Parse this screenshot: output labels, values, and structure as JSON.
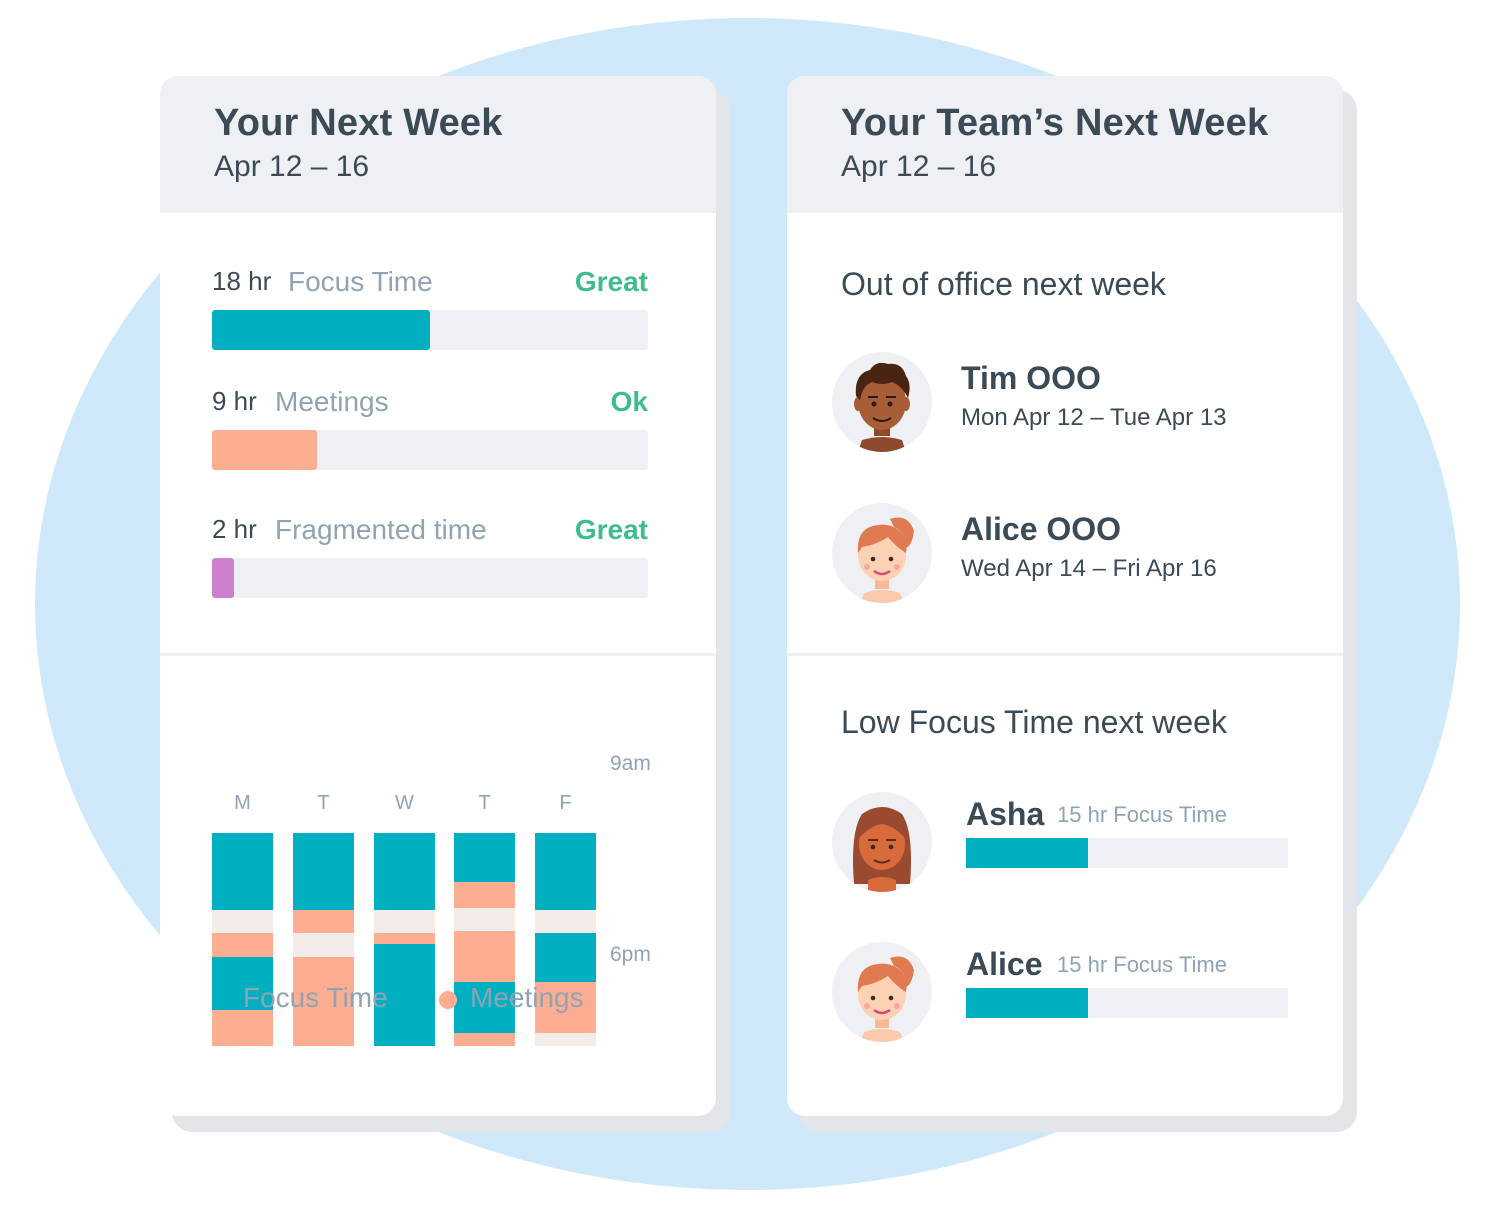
{
  "colors": {
    "focus": "#00b0c1",
    "meetings": "#fdad91",
    "fragmented": "#cf7fcf",
    "gap": "#f4ece8",
    "rating_green": "#3dbd8c"
  },
  "left_card": {
    "title": "Your Next Week",
    "date_range": "Apr 12 – 16",
    "metrics": [
      {
        "hours": "18 hr",
        "label": "Focus Time",
        "rating": "Great",
        "fill_fraction": 0.5
      },
      {
        "hours": "9 hr",
        "label": "Meetings",
        "rating": "Ok",
        "fill_fraction": 0.24
      },
      {
        "hours": "2 hr",
        "label": "Fragmented time",
        "rating": "Great",
        "fill_fraction": 0.05
      }
    ],
    "schedule": {
      "days": [
        "M",
        "T",
        "W",
        "T",
        "F"
      ],
      "start_label": "9am",
      "end_label": "6pm",
      "columns": [
        [
          [
            "focus",
            0.36
          ],
          [
            "gap",
            0.11
          ],
          [
            "meetings",
            0.11
          ],
          [
            "focus",
            0.25
          ],
          [
            "meetings",
            0.17
          ]
        ],
        [
          [
            "focus",
            0.36
          ],
          [
            "meetings",
            0.11
          ],
          [
            "gap",
            0.11
          ],
          [
            "meetings",
            0.42
          ]
        ],
        [
          [
            "focus",
            0.36
          ],
          [
            "gap",
            0.11
          ],
          [
            "meetings",
            0.05
          ],
          [
            "focus",
            0.48
          ]
        ],
        [
          [
            "focus",
            0.23
          ],
          [
            "meetings",
            0.12
          ],
          [
            "gap",
            0.11
          ],
          [
            "meetings",
            0.24
          ],
          [
            "focus",
            0.24
          ],
          [
            "meetings",
            0.06
          ]
        ],
        [
          [
            "focus",
            0.36
          ],
          [
            "gap",
            0.11
          ],
          [
            "focus",
            0.23
          ],
          [
            "meetings",
            0.24
          ],
          [
            "gap",
            0.06
          ]
        ]
      ]
    },
    "legend": [
      {
        "label": "Focus Time",
        "color": "#00b0c1"
      },
      {
        "label": "Meetings",
        "color": "#fdad91"
      }
    ]
  },
  "right_card": {
    "title": "Your Team’s Next Week",
    "date_range": "Apr 12 – 16",
    "ooo_title": "Out of office next week",
    "ooo_people": [
      {
        "name": "Tim OOO",
        "dates": "Mon Apr 12 – Tue Apr 13",
        "avatar": "man-curly-hair-avatar"
      },
      {
        "name": "Alice OOO",
        "dates": "Wed Apr 14 – Fri Apr 16",
        "avatar": "woman-ponytail-avatar"
      }
    ],
    "low_focus_title": "Low Focus Time next week",
    "low_focus_people": [
      {
        "name": "Asha",
        "meta": "15 hr Focus Time",
        "fill_fraction": 0.38,
        "avatar": "woman-long-hair-avatar"
      },
      {
        "name": "Alice",
        "meta": "15 hr Focus Time",
        "fill_fraction": 0.38,
        "avatar": "woman-ponytail-avatar"
      }
    ]
  }
}
